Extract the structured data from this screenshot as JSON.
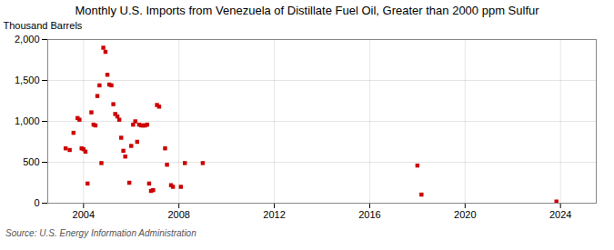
{
  "chart_data": {
    "type": "scatter",
    "title": "Monthly U.S. Imports from Venezuela of Distillate Fuel Oil, Greater than 2000 ppm Sulfur",
    "ylabel": "Thousand Barrels",
    "source": "Source: U.S. Energy Information Administration",
    "color": "#cc0000",
    "marker": "square",
    "grid": true,
    "xlim": [
      2002.5,
      2025.5
    ],
    "ylim": [
      0,
      2000
    ],
    "xticks": [
      2004,
      2008,
      2012,
      2016,
      2020,
      2024
    ],
    "yticks": [
      0,
      500,
      {
        "value": 1000,
        "label": "1,000"
      },
      {
        "value": 1500,
        "label": "1,500"
      },
      {
        "value": 2000,
        "label": "2,000"
      }
    ],
    "x": [
      2003.25,
      2003.42,
      2003.58,
      2003.75,
      2003.83,
      2003.92,
      2004.0,
      2004.08,
      2004.17,
      2004.33,
      2004.42,
      2004.5,
      2004.58,
      2004.67,
      2004.75,
      2004.83,
      2004.92,
      2005.0,
      2005.08,
      2005.17,
      2005.25,
      2005.33,
      2005.42,
      2005.5,
      2005.58,
      2005.67,
      2005.75,
      2005.92,
      2006.0,
      2006.08,
      2006.17,
      2006.25,
      2006.33,
      2006.42,
      2006.5,
      2006.58,
      2006.67,
      2006.75,
      2006.83,
      2006.92,
      2007.08,
      2007.17,
      2007.42,
      2007.5,
      2007.67,
      2007.75,
      2008.08,
      2008.25,
      2009.0,
      2018.0,
      2018.17,
      2023.83
    ],
    "values": [
      670,
      650,
      860,
      1040,
      1020,
      670,
      660,
      630,
      240,
      1110,
      960,
      950,
      1310,
      1440,
      490,
      1900,
      1850,
      1570,
      1450,
      1440,
      1210,
      1090,
      1060,
      1020,
      800,
      640,
      570,
      250,
      700,
      960,
      1000,
      750,
      960,
      950,
      950,
      950,
      960,
      240,
      150,
      160,
      1200,
      1180,
      670,
      470,
      220,
      200,
      200,
      490,
      490,
      460,
      105,
      20
    ]
  }
}
